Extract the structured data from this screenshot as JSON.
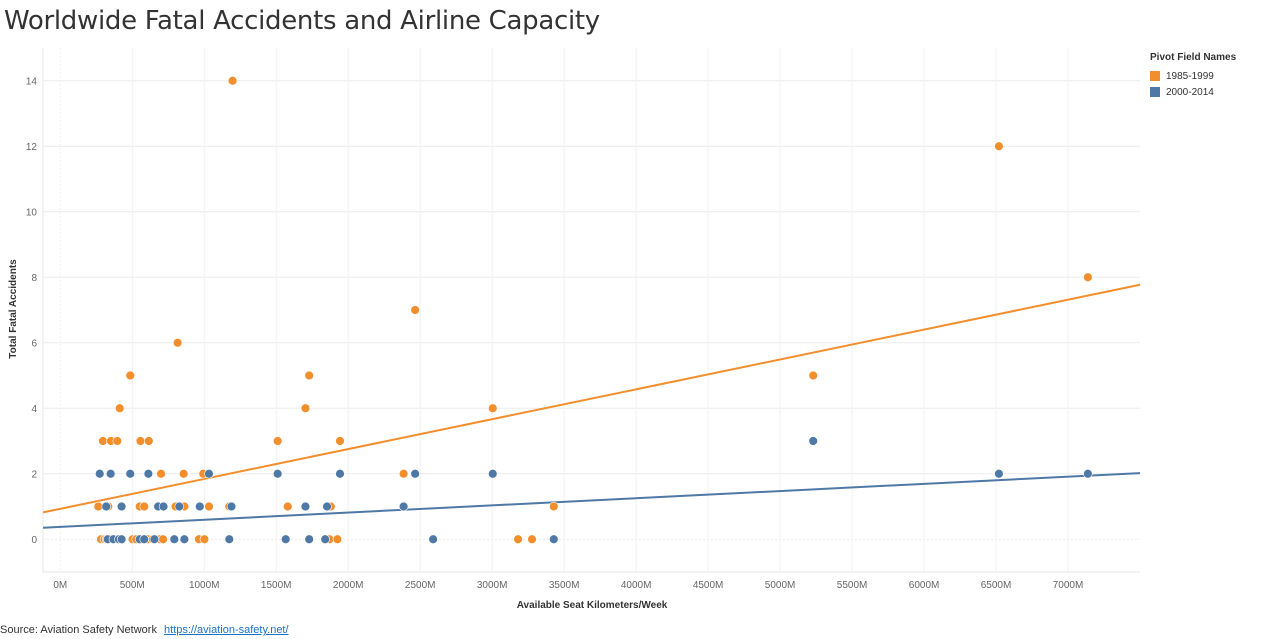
{
  "chart_data": {
    "type": "scatter",
    "title": "Worldwide Fatal Accidents and Airline Capacity",
    "xlabel": "Available Seat Kilometers/Week",
    "ylabel": "Total Fatal Accidents",
    "xlim": [
      -120,
      7500
    ],
    "ylim": [
      -1,
      15
    ],
    "x_ticks": [
      0,
      500,
      1000,
      1500,
      2000,
      2500,
      3000,
      3500,
      4000,
      4500,
      5000,
      5500,
      6000,
      6500,
      7000
    ],
    "x_tick_labels": [
      "0M",
      "500M",
      "1000M",
      "1500M",
      "2000M",
      "2500M",
      "3000M",
      "3500M",
      "4000M",
      "4500M",
      "5000M",
      "5500M",
      "6000M",
      "6500M",
      "7000M"
    ],
    "y_ticks": [
      0,
      2,
      4,
      6,
      8,
      10,
      12,
      14
    ],
    "y_tick_labels": [
      "0",
      "2",
      "4",
      "6",
      "8",
      "10",
      "12",
      "14"
    ],
    "legend_title": "Pivot Field Names",
    "legend_position": "top-right",
    "grid": true,
    "series": [
      {
        "name": "1985-1999",
        "color": "#f28e2b",
        "points": [
          [
            1197,
            14
          ],
          [
            6520,
            12
          ],
          [
            7138,
            8
          ],
          [
            2465,
            7
          ],
          [
            815,
            6
          ],
          [
            486,
            5
          ],
          [
            1729,
            5
          ],
          [
            5230,
            5
          ],
          [
            413,
            4
          ],
          [
            1703,
            4
          ],
          [
            3004,
            4
          ],
          [
            296,
            3
          ],
          [
            352,
            3
          ],
          [
            396,
            3
          ],
          [
            557,
            3
          ],
          [
            615,
            3
          ],
          [
            1510,
            3
          ],
          [
            1943,
            3
          ],
          [
            700,
            2
          ],
          [
            857,
            2
          ],
          [
            993,
            2
          ],
          [
            2385,
            2
          ],
          [
            264,
            1
          ],
          [
            333,
            1
          ],
          [
            426,
            1
          ],
          [
            552,
            1
          ],
          [
            583,
            1
          ],
          [
            676,
            1
          ],
          [
            717,
            1
          ],
          [
            801,
            1
          ],
          [
            862,
            1
          ],
          [
            1033,
            1
          ],
          [
            1174,
            1
          ],
          [
            1580,
            1
          ],
          [
            1853,
            1
          ],
          [
            1879,
            1
          ],
          [
            3428,
            1
          ],
          [
            283,
            0
          ],
          [
            307,
            0
          ],
          [
            322,
            0
          ],
          [
            342,
            0
          ],
          [
            358,
            0
          ],
          [
            373,
            0
          ],
          [
            391,
            0
          ],
          [
            502,
            0
          ],
          [
            527,
            0
          ],
          [
            609,
            0
          ],
          [
            643,
            0
          ],
          [
            691,
            0
          ],
          [
            714,
            0
          ],
          [
            963,
            0
          ],
          [
            1001,
            0
          ],
          [
            1870,
            0
          ],
          [
            1925,
            0
          ],
          [
            2590,
            0
          ],
          [
            3180,
            0
          ],
          [
            3277,
            0
          ]
        ],
        "trend": [
          [
            -120,
            0.82
          ],
          [
            7500,
            7.77
          ]
        ]
      },
      {
        "name": "2000-2014",
        "color": "#4e79a7",
        "points": [
          [
            5230,
            3
          ],
          [
            274,
            2
          ],
          [
            350,
            2
          ],
          [
            486,
            2
          ],
          [
            612,
            2
          ],
          [
            1033,
            2
          ],
          [
            1510,
            2
          ],
          [
            1943,
            2
          ],
          [
            2465,
            2
          ],
          [
            3004,
            2
          ],
          [
            6520,
            2
          ],
          [
            7138,
            2
          ],
          [
            319,
            1
          ],
          [
            426,
            1
          ],
          [
            680,
            1
          ],
          [
            717,
            1
          ],
          [
            827,
            1
          ],
          [
            969,
            1
          ],
          [
            1189,
            1
          ],
          [
            1703,
            1
          ],
          [
            1853,
            1
          ],
          [
            2385,
            1
          ],
          [
            330,
            0
          ],
          [
            369,
            0
          ],
          [
            407,
            0
          ],
          [
            426,
            0
          ],
          [
            552,
            0
          ],
          [
            583,
            0
          ],
          [
            654,
            0
          ],
          [
            792,
            0
          ],
          [
            862,
            0
          ],
          [
            1174,
            0
          ],
          [
            1566,
            0
          ],
          [
            1729,
            0
          ],
          [
            1840,
            0
          ],
          [
            2590,
            0
          ],
          [
            3428,
            0
          ]
        ],
        "trend": [
          [
            -120,
            0.35
          ],
          [
            7500,
            2.02
          ]
        ]
      }
    ]
  },
  "source": {
    "prefix": "Source:",
    "name": "Aviation Safety Network",
    "url": "https://aviation-safety.net/"
  }
}
